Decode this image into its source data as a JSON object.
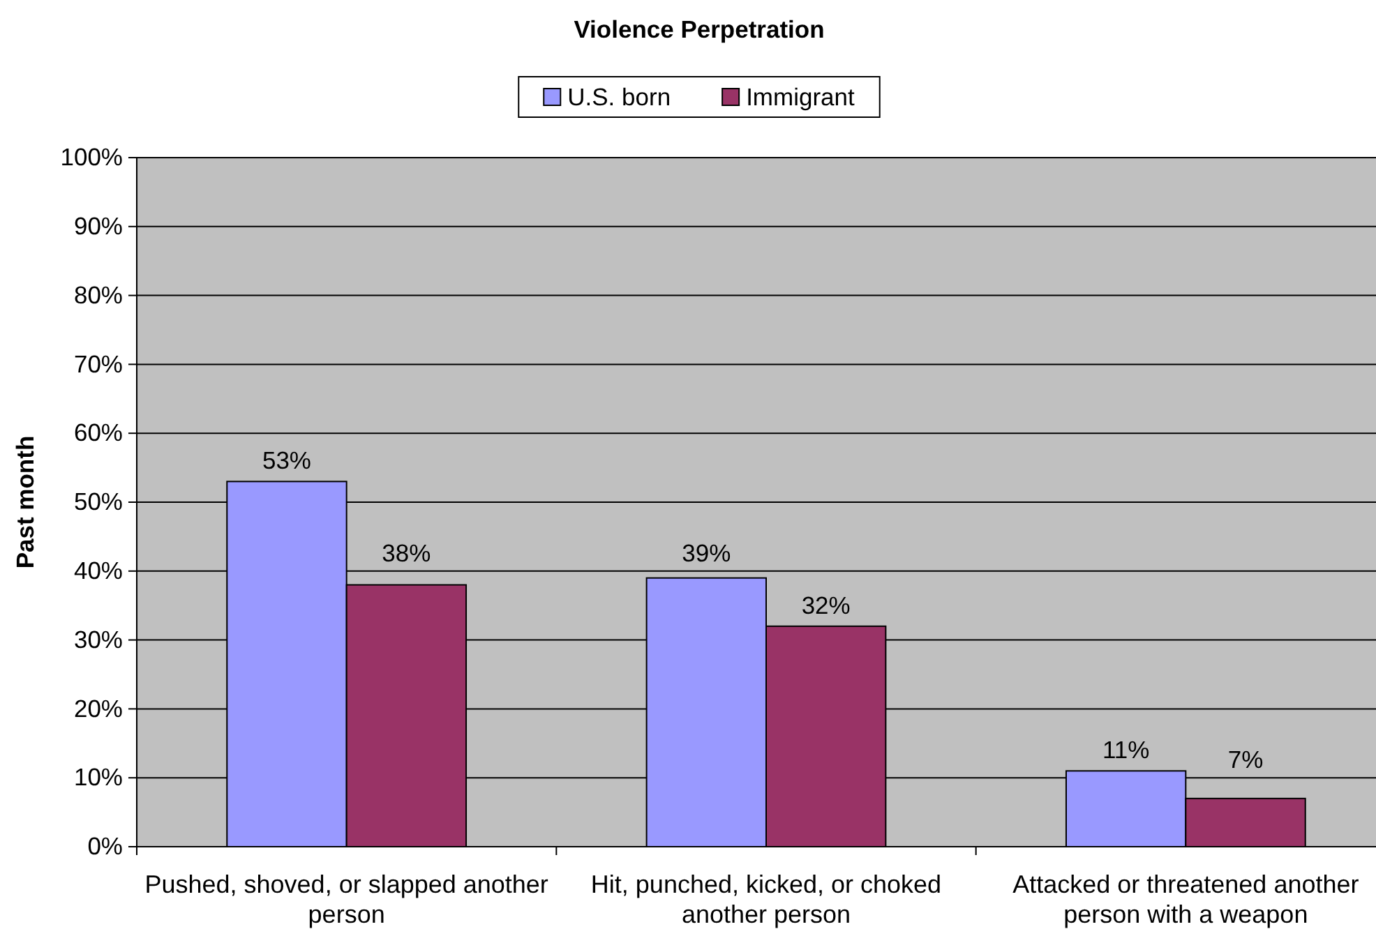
{
  "chart_data": {
    "type": "bar",
    "title": "Violence Perpetration",
    "ylabel": "Past month",
    "categories": [
      "Pushed, shoved, or slapped another person",
      "Hit, punched, kicked, or choked another person",
      "Attacked or threatened another person with a weapon"
    ],
    "series": [
      {
        "name": "U.S. born",
        "color": "#9999ff",
        "values": [
          53,
          39,
          11
        ],
        "value_labels": [
          "53%",
          "39%",
          "11%"
        ]
      },
      {
        "name": "Immigrant",
        "color": "#993366",
        "values": [
          38,
          32,
          7
        ],
        "value_labels": [
          "38%",
          "32%",
          "7%"
        ]
      }
    ],
    "ylim": [
      0,
      100
    ],
    "yticks": [
      {
        "value": 0,
        "label": "0%"
      },
      {
        "value": 10,
        "label": "10%"
      },
      {
        "value": 20,
        "label": "20%"
      },
      {
        "value": 30,
        "label": "30%"
      },
      {
        "value": 40,
        "label": "40%"
      },
      {
        "value": 50,
        "label": "50%"
      },
      {
        "value": 60,
        "label": "60%"
      },
      {
        "value": 70,
        "label": "70%"
      },
      {
        "value": 80,
        "label": "80%"
      },
      {
        "value": 90,
        "label": "90%"
      },
      {
        "value": 100,
        "label": "100%"
      }
    ],
    "grid": "y",
    "legend": "top"
  }
}
